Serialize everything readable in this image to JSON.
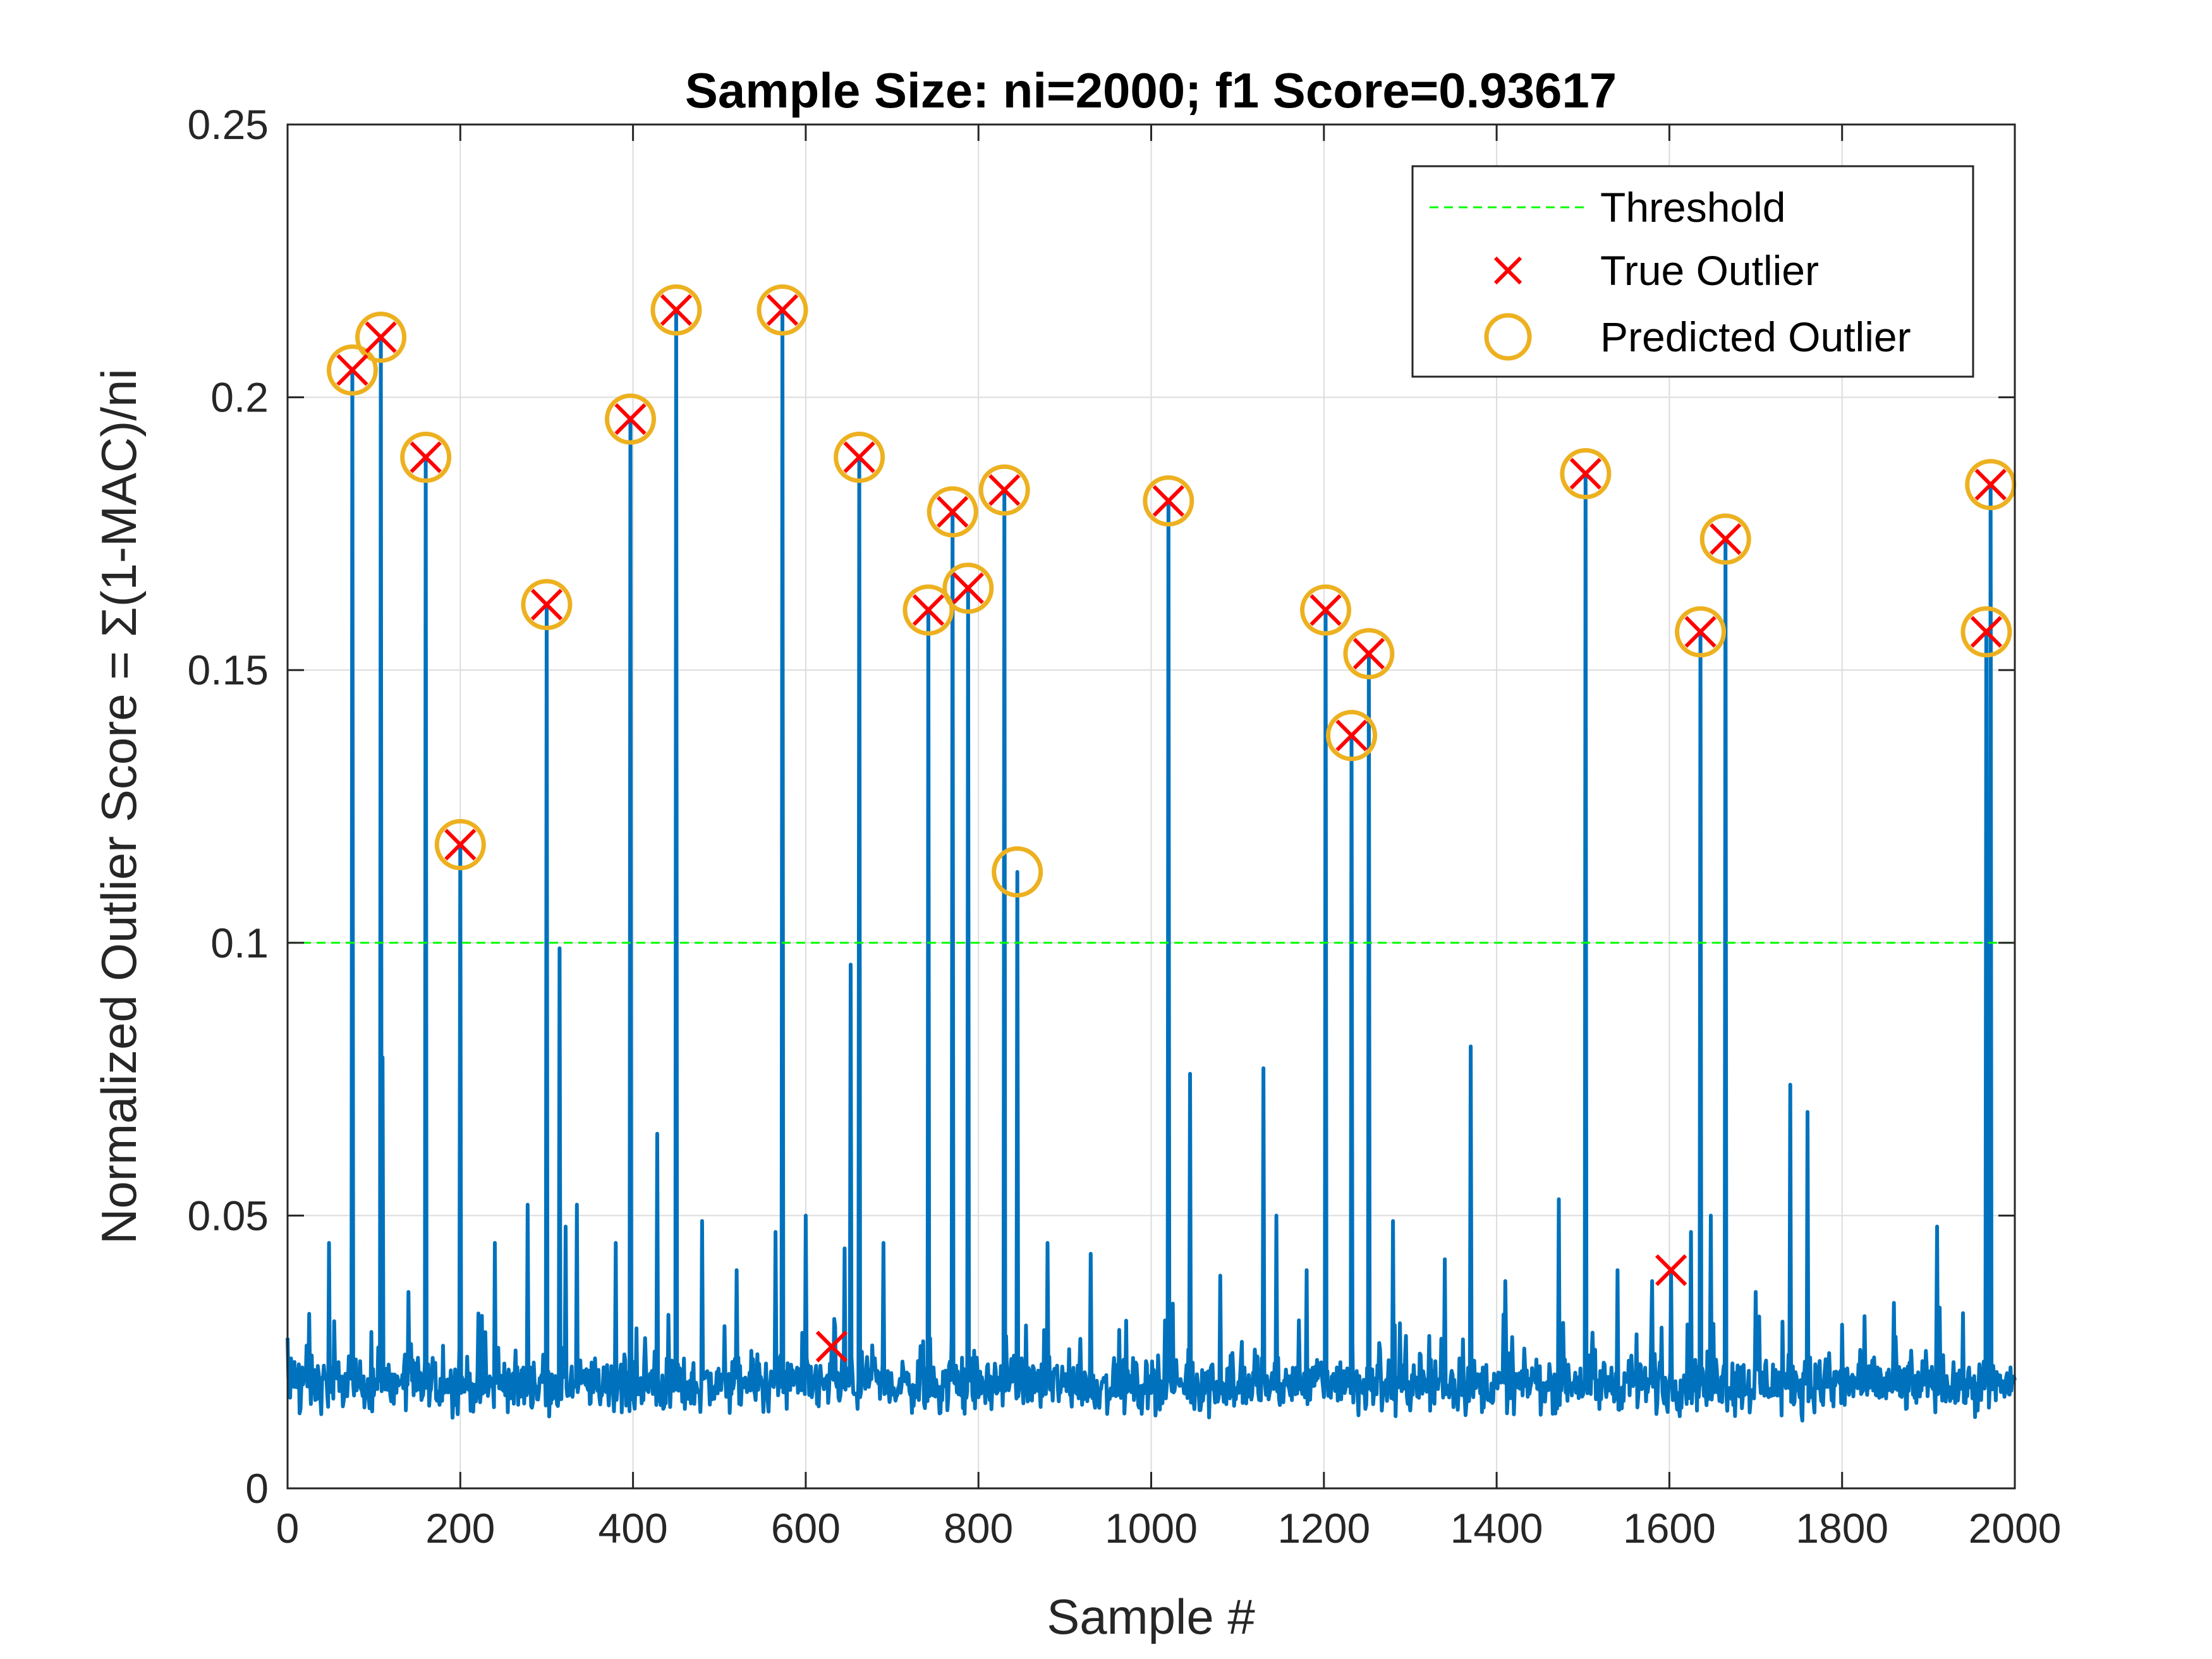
{
  "chart_data": {
    "type": "line",
    "title": "Sample Size: ni=2000; f1 Score=0.93617",
    "xlabel": "Sample #",
    "ylabel": "Normalized Outlier Score = Σ(1-MAC)/ni",
    "xlim": [
      0,
      2000
    ],
    "ylim": [
      0,
      0.25
    ],
    "xticks": [
      "0",
      "200",
      "400",
      "600",
      "800",
      "1000",
      "1200",
      "1400",
      "1600",
      "1800",
      "2000"
    ],
    "yticks": [
      "0",
      "0.05",
      "0.1",
      "0.15",
      "0.2",
      "0.25"
    ],
    "grid": true,
    "legend_position": "top-right",
    "legend": [
      "Threshold",
      "True Outlier",
      "Predicted Outlier"
    ],
    "colors": {
      "score": "#0072BD",
      "threshold": "#00FF00",
      "true_outlier": "#FF0000",
      "predicted_outlier": "#EDB120"
    },
    "threshold": 0.1,
    "baseline": {
      "mean": 0.019,
      "spread": 0.0045,
      "seed": 12345
    },
    "spikes": [
      {
        "x": 25,
        "y": 0.032
      },
      {
        "x": 48,
        "y": 0.045
      },
      {
        "x": 75,
        "y": 0.205
      },
      {
        "x": 108,
        "y": 0.211
      },
      {
        "x": 110,
        "y": 0.079
      },
      {
        "x": 140,
        "y": 0.036
      },
      {
        "x": 160,
        "y": 0.189
      },
      {
        "x": 200,
        "y": 0.118
      },
      {
        "x": 240,
        "y": 0.045
      },
      {
        "x": 278,
        "y": 0.052
      },
      {
        "x": 300,
        "y": 0.162
      },
      {
        "x": 315,
        "y": 0.099
      },
      {
        "x": 322,
        "y": 0.048
      },
      {
        "x": 335,
        "y": 0.052
      },
      {
        "x": 380,
        "y": 0.045
      },
      {
        "x": 397,
        "y": 0.196
      },
      {
        "x": 428,
        "y": 0.065
      },
      {
        "x": 450,
        "y": 0.216
      },
      {
        "x": 480,
        "y": 0.049
      },
      {
        "x": 520,
        "y": 0.04
      },
      {
        "x": 565,
        "y": 0.047
      },
      {
        "x": 573,
        "y": 0.216
      },
      {
        "x": 600,
        "y": 0.05
      },
      {
        "x": 630,
        "y": 0.026
      },
      {
        "x": 645,
        "y": 0.044
      },
      {
        "x": 652,
        "y": 0.096
      },
      {
        "x": 662,
        "y": 0.189
      },
      {
        "x": 690,
        "y": 0.045
      },
      {
        "x": 742,
        "y": 0.161
      },
      {
        "x": 770,
        "y": 0.179
      },
      {
        "x": 788,
        "y": 0.165
      },
      {
        "x": 830,
        "y": 0.183
      },
      {
        "x": 845,
        "y": 0.113
      },
      {
        "x": 880,
        "y": 0.045
      },
      {
        "x": 930,
        "y": 0.043
      },
      {
        "x": 1020,
        "y": 0.181
      },
      {
        "x": 1045,
        "y": 0.076
      },
      {
        "x": 1080,
        "y": 0.039
      },
      {
        "x": 1130,
        "y": 0.077
      },
      {
        "x": 1145,
        "y": 0.05
      },
      {
        "x": 1180,
        "y": 0.04
      },
      {
        "x": 1202,
        "y": 0.161
      },
      {
        "x": 1232,
        "y": 0.138
      },
      {
        "x": 1252,
        "y": 0.153
      },
      {
        "x": 1280,
        "y": 0.049
      },
      {
        "x": 1340,
        "y": 0.042
      },
      {
        "x": 1370,
        "y": 0.081
      },
      {
        "x": 1410,
        "y": 0.038
      },
      {
        "x": 1472,
        "y": 0.053
      },
      {
        "x": 1503,
        "y": 0.186
      },
      {
        "x": 1540,
        "y": 0.04
      },
      {
        "x": 1580,
        "y": 0.038
      },
      {
        "x": 1602,
        "y": 0.04
      },
      {
        "x": 1625,
        "y": 0.047
      },
      {
        "x": 1636,
        "y": 0.157
      },
      {
        "x": 1648,
        "y": 0.05
      },
      {
        "x": 1665,
        "y": 0.174
      },
      {
        "x": 1700,
        "y": 0.036
      },
      {
        "x": 1740,
        "y": 0.074
      },
      {
        "x": 1760,
        "y": 0.069
      },
      {
        "x": 1800,
        "y": 0.03
      },
      {
        "x": 1860,
        "y": 0.034
      },
      {
        "x": 1910,
        "y": 0.048
      },
      {
        "x": 1967,
        "y": 0.157
      },
      {
        "x": 1972,
        "y": 0.184
      }
    ],
    "true_outliers": [
      {
        "x": 75,
        "y": 0.205
      },
      {
        "x": 108,
        "y": 0.211
      },
      {
        "x": 160,
        "y": 0.189
      },
      {
        "x": 200,
        "y": 0.118
      },
      {
        "x": 300,
        "y": 0.162
      },
      {
        "x": 397,
        "y": 0.196
      },
      {
        "x": 450,
        "y": 0.216
      },
      {
        "x": 573,
        "y": 0.216
      },
      {
        "x": 630,
        "y": 0.026
      },
      {
        "x": 662,
        "y": 0.189
      },
      {
        "x": 742,
        "y": 0.161
      },
      {
        "x": 770,
        "y": 0.179
      },
      {
        "x": 788,
        "y": 0.165
      },
      {
        "x": 830,
        "y": 0.183
      },
      {
        "x": 1020,
        "y": 0.181
      },
      {
        "x": 1202,
        "y": 0.161
      },
      {
        "x": 1232,
        "y": 0.138
      },
      {
        "x": 1252,
        "y": 0.153
      },
      {
        "x": 1503,
        "y": 0.186
      },
      {
        "x": 1602,
        "y": 0.04
      },
      {
        "x": 1636,
        "y": 0.157
      },
      {
        "x": 1665,
        "y": 0.174
      },
      {
        "x": 1967,
        "y": 0.157
      },
      {
        "x": 1972,
        "y": 0.184
      }
    ],
    "predicted_outliers": [
      {
        "x": 75,
        "y": 0.205
      },
      {
        "x": 108,
        "y": 0.211
      },
      {
        "x": 160,
        "y": 0.189
      },
      {
        "x": 200,
        "y": 0.118
      },
      {
        "x": 300,
        "y": 0.162
      },
      {
        "x": 397,
        "y": 0.196
      },
      {
        "x": 450,
        "y": 0.216
      },
      {
        "x": 573,
        "y": 0.216
      },
      {
        "x": 662,
        "y": 0.189
      },
      {
        "x": 742,
        "y": 0.161
      },
      {
        "x": 770,
        "y": 0.179
      },
      {
        "x": 788,
        "y": 0.165
      },
      {
        "x": 830,
        "y": 0.183
      },
      {
        "x": 845,
        "y": 0.113
      },
      {
        "x": 1020,
        "y": 0.181
      },
      {
        "x": 1202,
        "y": 0.161
      },
      {
        "x": 1232,
        "y": 0.138
      },
      {
        "x": 1252,
        "y": 0.153
      },
      {
        "x": 1503,
        "y": 0.186
      },
      {
        "x": 1636,
        "y": 0.157
      },
      {
        "x": 1665,
        "y": 0.174
      },
      {
        "x": 1967,
        "y": 0.157
      },
      {
        "x": 1972,
        "y": 0.184
      }
    ]
  }
}
